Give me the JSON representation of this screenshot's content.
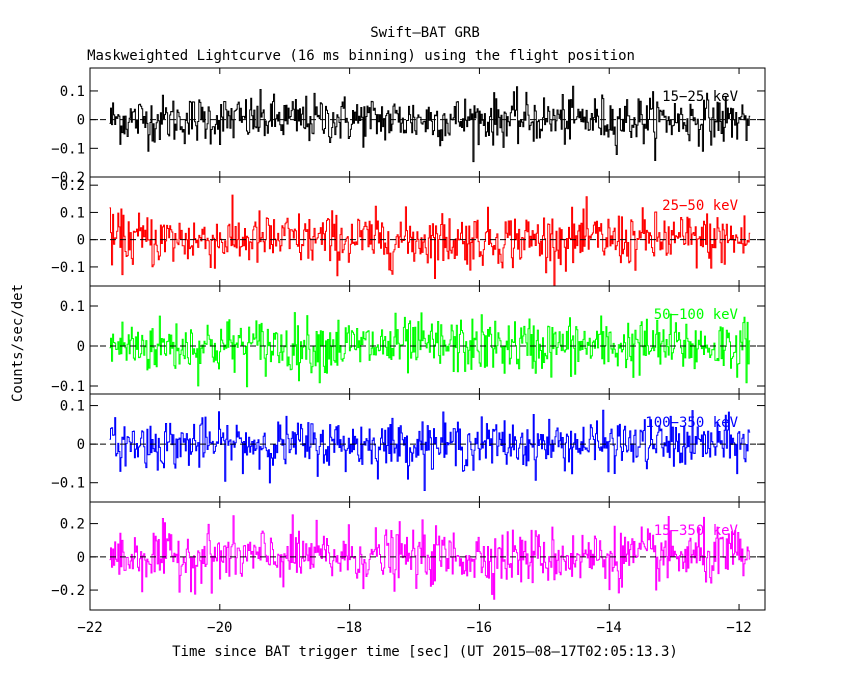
{
  "chart_data": {
    "type": "line",
    "title": "Swift–BAT GRB",
    "subtitle": "Maskweighted Lightcurve (16 ms binning) using the flight position",
    "xlabel": "Time since BAT trigger time [sec] (UT 2015–08–17T02:05:13.3)",
    "ylabel": "Counts/sec/det",
    "xlim": [
      -22.0,
      -11.6
    ],
    "data_x_range": [
      -21.7,
      -11.82
    ],
    "bin_width_sec": 0.016,
    "x_ticks": [
      -22,
      -20,
      -18,
      -16,
      -14,
      -12
    ],
    "x_tick_labels": [
      "−22",
      "−20",
      "−18",
      "−16",
      "−14",
      "−12"
    ],
    "grid": false,
    "legend": "none",
    "panels": [
      {
        "series_name": "15−25 keV",
        "color": "#000000",
        "ylim": [
          -0.2,
          0.18
        ],
        "y_ticks": [
          0.1,
          0,
          -0.1,
          -0.2
        ],
        "y_tick_labels": [
          "0.1",
          "0",
          "−0.1",
          "−0.2"
        ],
        "amplitude": 0.042,
        "values_summary": "noise around 0, mostly within ±0.12"
      },
      {
        "series_name": "25−50 keV",
        "color": "#ff0000",
        "ylim": [
          -0.17,
          0.23
        ],
        "y_ticks": [
          0.2,
          0.1,
          0,
          -0.1
        ],
        "y_tick_labels": [
          "0.2",
          "0.1",
          "0",
          "−0.1"
        ],
        "amplitude": 0.05,
        "values_summary": "noise around 0, mostly within ±0.15"
      },
      {
        "series_name": "50−100 keV",
        "color": "#00ff00",
        "ylim": [
          -0.12,
          0.15
        ],
        "y_ticks": [
          0.1,
          0,
          -0.1
        ],
        "y_tick_labels": [
          "0.1",
          "0",
          "−0.1"
        ],
        "amplitude": 0.035,
        "values_summary": "noise around 0, mostly within ±0.11"
      },
      {
        "series_name": "100−350 keV",
        "color": "#0000ff",
        "ylim": [
          -0.15,
          0.13
        ],
        "y_ticks": [
          0.1,
          0,
          -0.1
        ],
        "y_tick_labels": [
          "0.1",
          "0",
          "−0.1"
        ],
        "amplitude": 0.032,
        "values_summary": "noise around 0, mostly within ±0.1"
      },
      {
        "series_name": "15−350 keV",
        "color": "#ff00ff",
        "ylim": [
          -0.32,
          0.33
        ],
        "y_ticks": [
          0.2,
          0,
          -0.2
        ],
        "y_tick_labels": [
          "0.2",
          "0",
          "−0.2"
        ],
        "amplitude": 0.085,
        "values_summary": "noise around 0, mostly within ±0.27"
      }
    ]
  }
}
